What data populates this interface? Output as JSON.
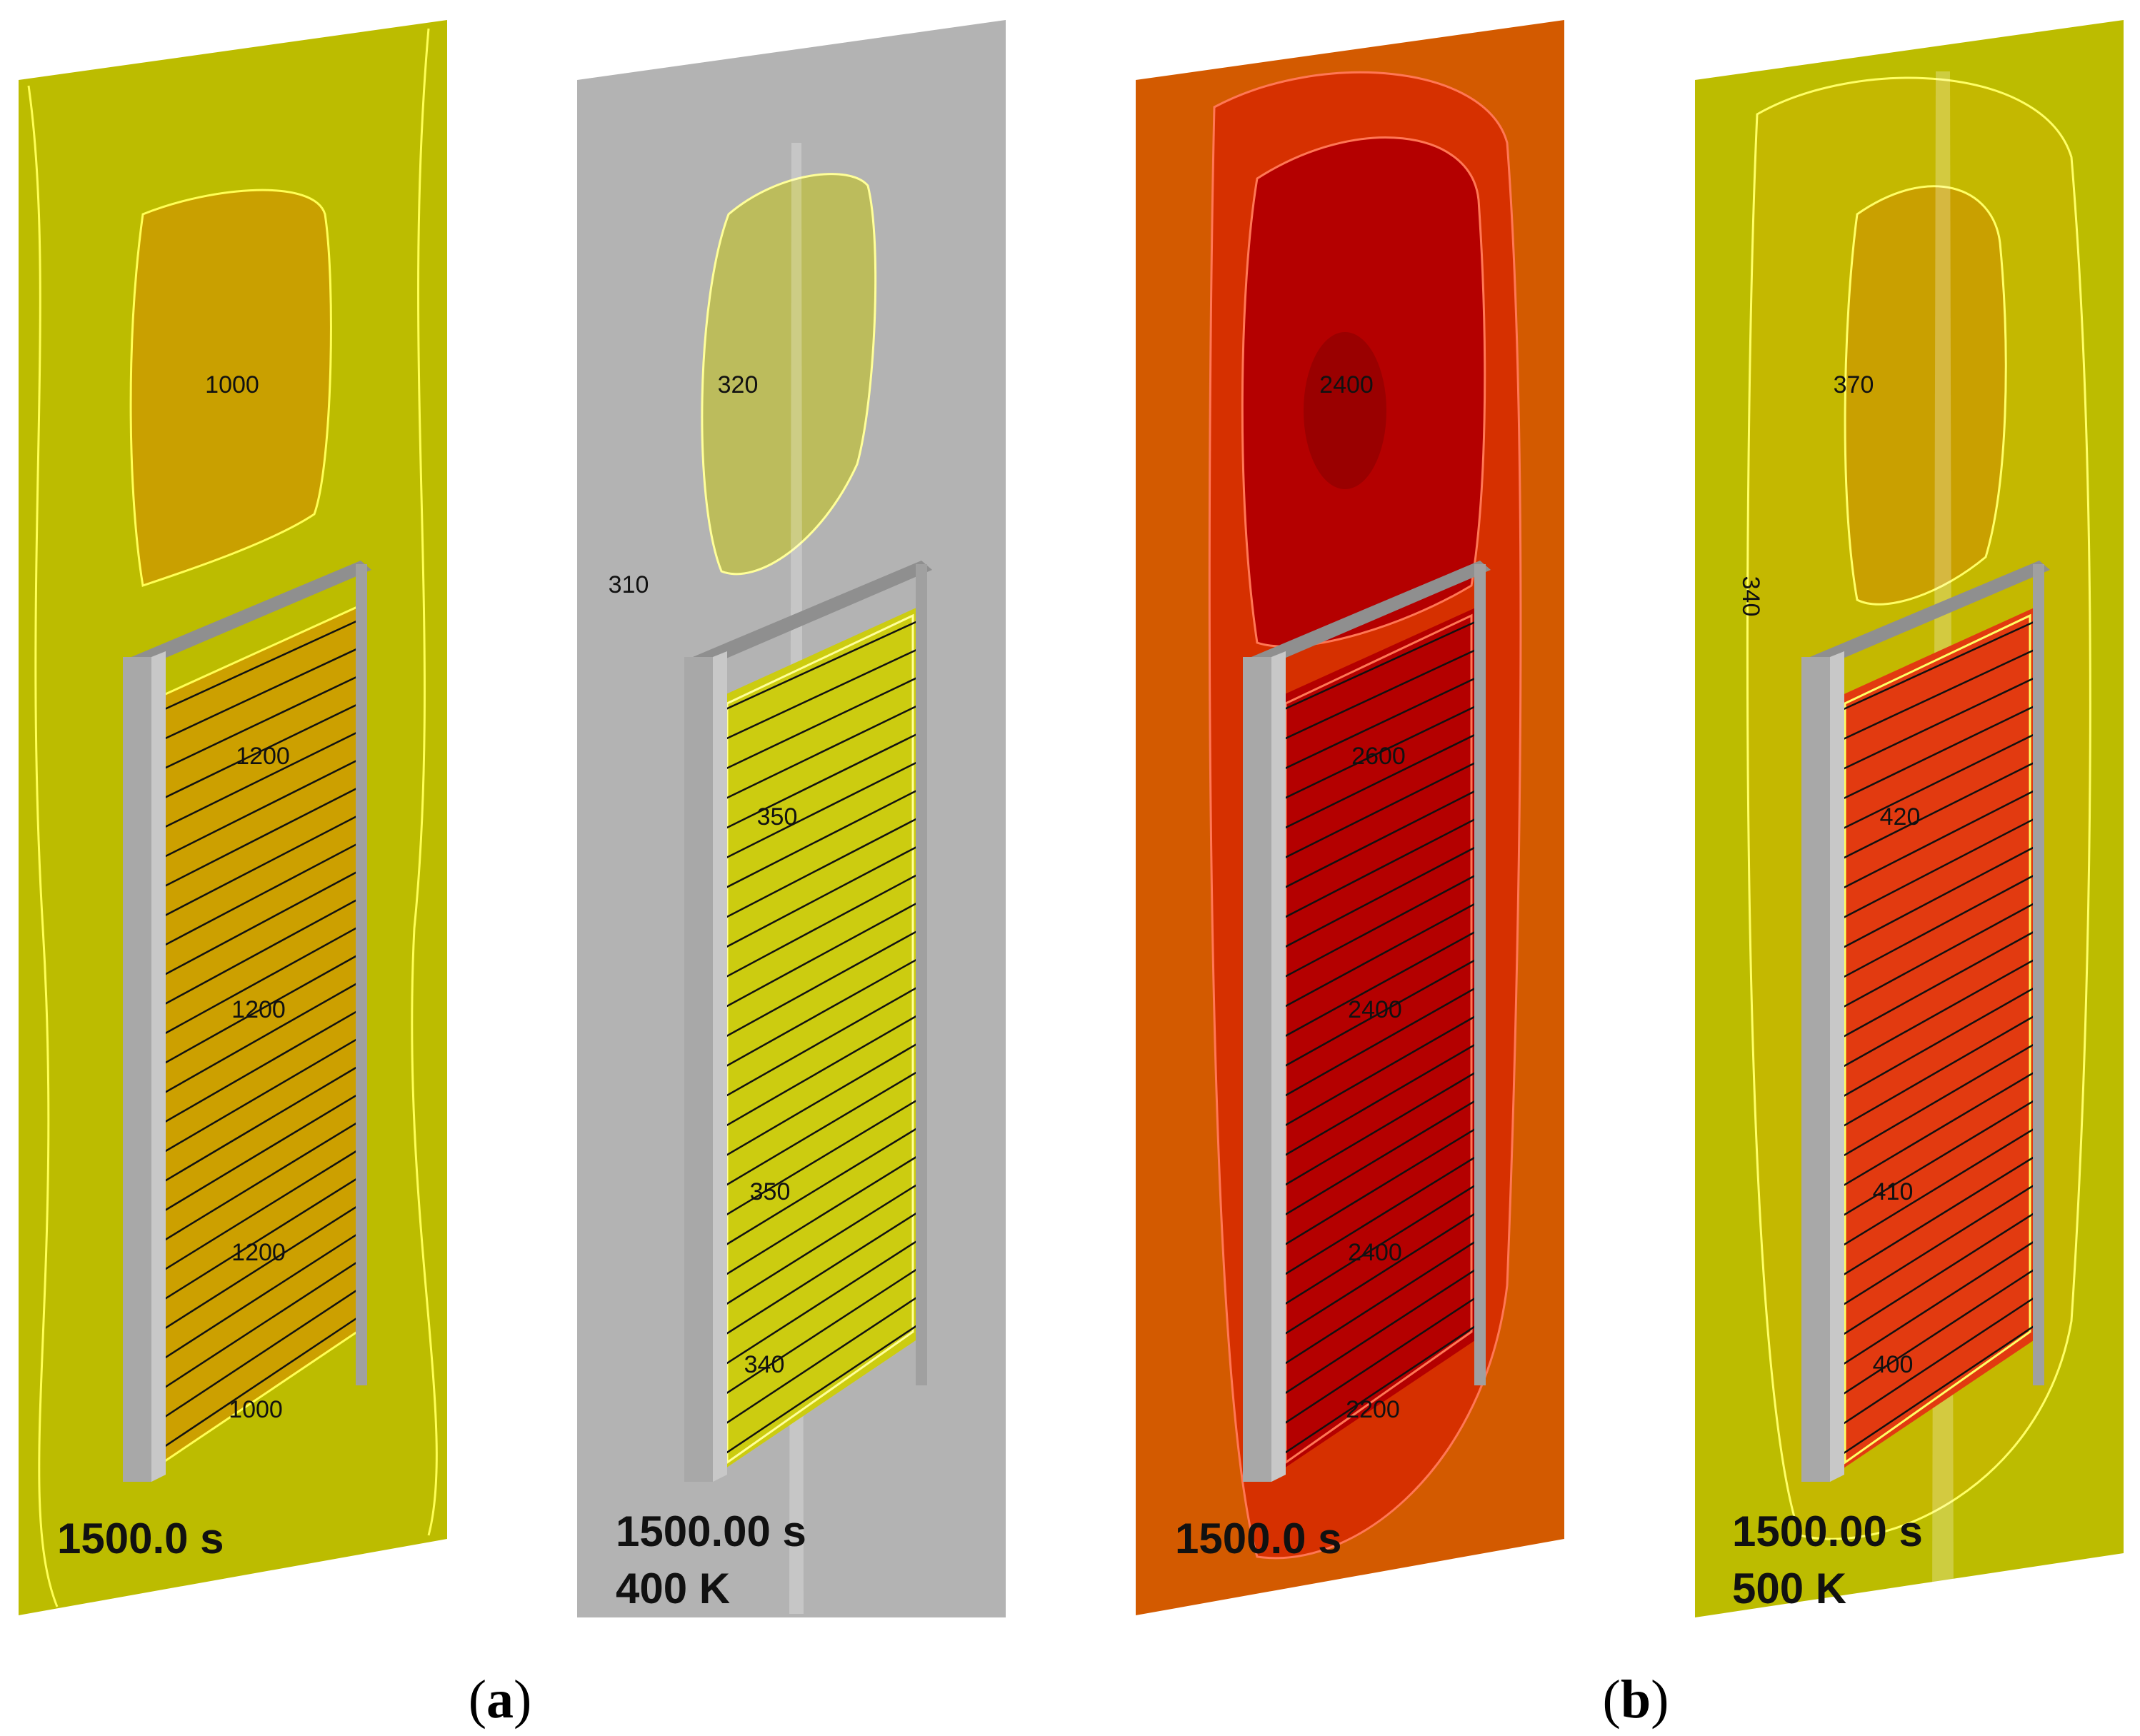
{
  "panels": [
    {
      "id": "a1",
      "background": "#bcbc00",
      "center_color": "#cca000",
      "top_blob_color": "#c9a000",
      "contour_line_color": "#ffff55",
      "contour_labels": [
        "1000",
        "1200",
        "1200",
        "1200",
        "1000"
      ],
      "stamp_time": "1500.0 s",
      "stamp_temp": ""
    },
    {
      "id": "a2",
      "background": "#b3b3b3",
      "center_color": "#cccc10",
      "top_blob_color": "#bcbc5c",
      "contour_line_color": "#ffff99",
      "contour_labels": [
        "320",
        "310",
        "350",
        "350",
        "340"
      ],
      "stamp_time": "1500.00 s",
      "stamp_temp": "400 K"
    },
    {
      "id": "b1",
      "background": "#d35a00",
      "center_color": "#b40000",
      "top_blob_color": "#b40000",
      "contour_line_color": "#ff7755",
      "contour_labels": [
        "2400",
        "2600",
        "2400",
        "2400",
        "2200"
      ],
      "stamp_time": "1500.0 s",
      "stamp_temp": ""
    },
    {
      "id": "b2",
      "background": "#bcbc00",
      "center_color": "#e23a10",
      "top_blob_color": "#c9a000",
      "contour_line_color": "#ffff66",
      "contour_labels": [
        "370",
        "340",
        "420",
        "410",
        "400"
      ],
      "stamp_time": "1500.00 s",
      "stamp_temp": "500 K"
    }
  ],
  "subfigure_labels": [
    "a",
    "b"
  ]
}
